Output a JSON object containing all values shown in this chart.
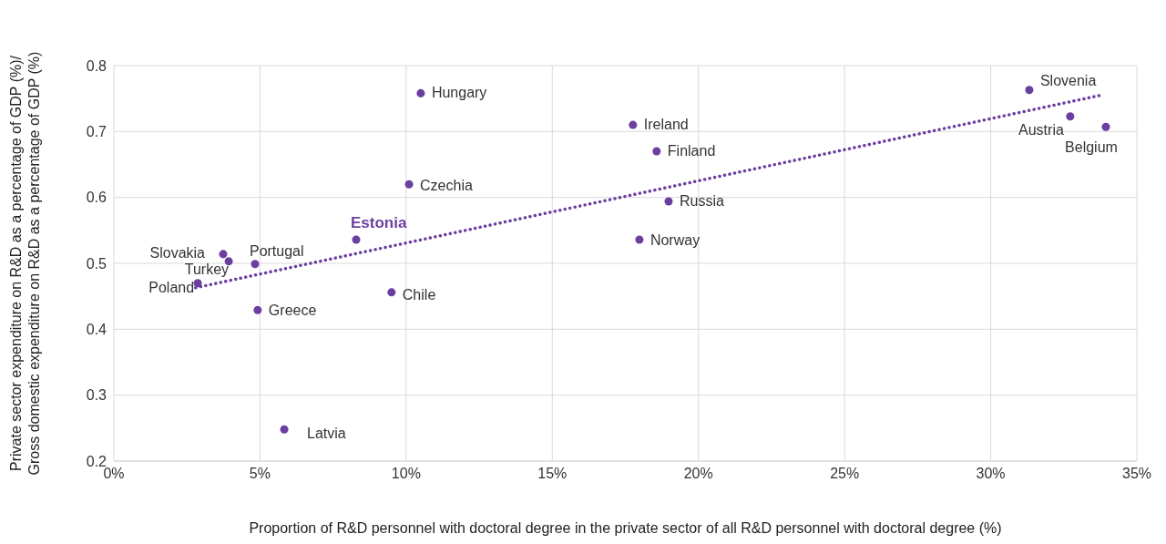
{
  "chart_data": {
    "type": "scatter",
    "xlabel": "Proportion of R&D personnel with doctoral degree in the private sector of all R&D personnel with doctoral degree (%)",
    "ylabel": "Private sector expenditure on R&D as a percentage of GDP (%)/ Gross  domestic expenditure on R&D as a percentage of GDP (%)",
    "xlim": [
      0,
      35
    ],
    "xticks": [
      {
        "value": 0,
        "label": "0%"
      },
      {
        "value": 5,
        "label": "5%"
      },
      {
        "value": 10,
        "label": "10%"
      },
      {
        "value": 15,
        "label": "15%"
      },
      {
        "value": 20,
        "label": "20%"
      },
      {
        "value": 25,
        "label": "25%"
      },
      {
        "value": 30,
        "label": "30%"
      },
      {
        "value": 35,
        "label": "35%"
      }
    ],
    "ylim": [
      0.2,
      0.8
    ],
    "yticks": [
      0.2,
      0.3,
      0.4,
      0.5,
      0.6,
      0.7,
      0.8
    ],
    "grid": true,
    "legend": false,
    "marker": "circle",
    "series": [
      {
        "color": "#6b3fa0",
        "x": [
          10.5,
          17.76,
          18.57,
          10.1,
          18.98,
          17.98,
          3.74,
          3.93,
          4.83,
          2.87,
          9.5,
          4.92,
          5.83,
          31.32,
          32.72,
          33.94
        ],
        "values": [
          0.758,
          0.71,
          0.67,
          0.62,
          0.594,
          0.536,
          0.514,
          0.503,
          0.499,
          0.47,
          0.456,
          0.429,
          0.248,
          0.763,
          0.723,
          0.707
        ]
      },
      {
        "name": "Estonia",
        "color": "#6b3fa0",
        "x": [
          8.29
        ],
        "values": [
          0.536
        ]
      },
      {
        "type": "line",
        "color": "#6b3fa0",
        "line_style": "dotted",
        "marker": "none",
        "x": [
          2.8,
          33.87
        ],
        "values": [
          0.463,
          0.756
        ]
      }
    ],
    "annotations": [
      {
        "text": "Hungary",
        "x": 10.5,
        "y": 0.758
      },
      {
        "text": "Ireland",
        "x": 17.76,
        "y": 0.71
      },
      {
        "text": "Finland",
        "x": 18.57,
        "y": 0.67
      },
      {
        "text": "Czechia",
        "x": 10.1,
        "y": 0.62
      },
      {
        "text": "Russia",
        "x": 18.98,
        "y": 0.594
      },
      {
        "text": "Norway",
        "x": 17.98,
        "y": 0.536
      },
      {
        "text": "Slovakia",
        "x": 3.74,
        "y": 0.514
      },
      {
        "text": "Turkey",
        "x": 3.93,
        "y": 0.503
      },
      {
        "text": "Portugal",
        "x": 4.83,
        "y": 0.499
      },
      {
        "text": "Poland",
        "x": 2.87,
        "y": 0.47
      },
      {
        "text": "Chile",
        "x": 9.5,
        "y": 0.456
      },
      {
        "text": "Greece",
        "x": 4.92,
        "y": 0.429
      },
      {
        "text": "Latvia",
        "x": 5.83,
        "y": 0.248
      },
      {
        "text": "Slovenia",
        "x": 31.32,
        "y": 0.763
      },
      {
        "text": "Austria",
        "x": 32.72,
        "y": 0.723
      },
      {
        "text": "Belgium",
        "x": 33.94,
        "y": 0.707
      }
    ]
  }
}
